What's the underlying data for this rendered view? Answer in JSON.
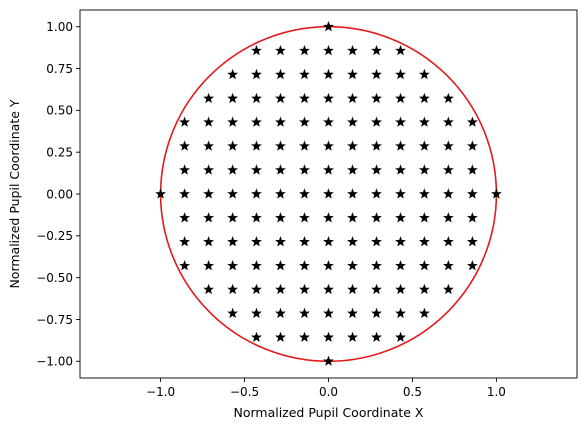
{
  "chart_data": {
    "type": "scatter",
    "title": "",
    "xlabel": "Normalized Pupil Coordinate X",
    "ylabel": "Normalized Pupil Coordinate Y",
    "xlim": [
      -1.48,
      1.48
    ],
    "ylim": [
      -1.1,
      1.1
    ],
    "x_ticks": [
      -1.0,
      -0.5,
      0.0,
      0.5,
      1.0
    ],
    "x_tick_labels": [
      "−1.0",
      "−0.5",
      "0.0",
      "0.5",
      "1.0"
    ],
    "y_ticks": [
      1.0,
      0.75,
      0.5,
      0.25,
      0.0,
      -0.25,
      -0.5,
      -0.75,
      -1.0
    ],
    "y_tick_labels": [
      "1.00",
      "0.75",
      "0.50",
      "0.25",
      "0.00",
      "−0.25",
      "−0.50",
      "−0.75",
      "−1.00"
    ],
    "grid": false,
    "grid_step": 0.1428571,
    "circle": {
      "center": [
        0,
        0
      ],
      "radius": 1.0,
      "color": "#e41a1c"
    },
    "marker": {
      "shape": "star",
      "color": "#000000"
    },
    "points_note_rows": [
      {
        "y": 1.0,
        "x": [
          0.0
        ]
      },
      {
        "y": 0.857,
        "x": [
          -0.429,
          -0.286,
          -0.143,
          0.0,
          0.143,
          0.286,
          0.429
        ]
      },
      {
        "y": 0.714,
        "x": [
          -0.571,
          -0.429,
          -0.286,
          -0.143,
          0.0,
          0.143,
          0.286,
          0.429,
          0.571
        ]
      },
      {
        "y": 0.571,
        "x": [
          -0.714,
          -0.571,
          -0.429,
          -0.286,
          -0.143,
          0.0,
          0.143,
          0.286,
          0.429,
          0.571,
          0.714
        ]
      },
      {
        "y": 0.429,
        "x": [
          -0.857,
          -0.714,
          -0.571,
          -0.429,
          -0.286,
          -0.143,
          0.0,
          0.143,
          0.286,
          0.429,
          0.571,
          0.714,
          0.857
        ]
      },
      {
        "y": 0.286,
        "x": [
          -0.857,
          -0.714,
          -0.571,
          -0.429,
          -0.286,
          -0.143,
          0.0,
          0.143,
          0.286,
          0.429,
          0.571,
          0.714,
          0.857
        ]
      },
      {
        "y": 0.143,
        "x": [
          -0.857,
          -0.714,
          -0.571,
          -0.429,
          -0.286,
          -0.143,
          0.0,
          0.143,
          0.286,
          0.429,
          0.571,
          0.714,
          0.857
        ]
      },
      {
        "y": 0.0,
        "x": [
          -1.0,
          -0.857,
          -0.714,
          -0.571,
          -0.429,
          -0.286,
          -0.143,
          0.0,
          0.143,
          0.286,
          0.429,
          0.571,
          0.714,
          0.857,
          1.0
        ]
      },
      {
        "y": -0.143,
        "x": [
          -0.857,
          -0.714,
          -0.571,
          -0.429,
          -0.286,
          -0.143,
          0.0,
          0.143,
          0.286,
          0.429,
          0.571,
          0.714,
          0.857
        ]
      },
      {
        "y": -0.286,
        "x": [
          -0.857,
          -0.714,
          -0.571,
          -0.429,
          -0.286,
          -0.143,
          0.0,
          0.143,
          0.286,
          0.429,
          0.571,
          0.714,
          0.857
        ]
      },
      {
        "y": -0.429,
        "x": [
          -0.857,
          -0.714,
          -0.571,
          -0.429,
          -0.286,
          -0.143,
          0.0,
          0.143,
          0.286,
          0.429,
          0.571,
          0.714,
          0.857
        ]
      },
      {
        "y": -0.571,
        "x": [
          -0.714,
          -0.571,
          -0.429,
          -0.286,
          -0.143,
          0.0,
          0.143,
          0.286,
          0.429,
          0.571,
          0.714
        ]
      },
      {
        "y": -0.714,
        "x": [
          -0.571,
          -0.429,
          -0.286,
          -0.143,
          0.0,
          0.143,
          0.286,
          0.429,
          0.571
        ]
      },
      {
        "y": -0.857,
        "x": [
          -0.429,
          -0.286,
          -0.143,
          0.0,
          0.143,
          0.286,
          0.429
        ]
      },
      {
        "y": -1.0,
        "x": [
          0.0
        ]
      }
    ]
  }
}
